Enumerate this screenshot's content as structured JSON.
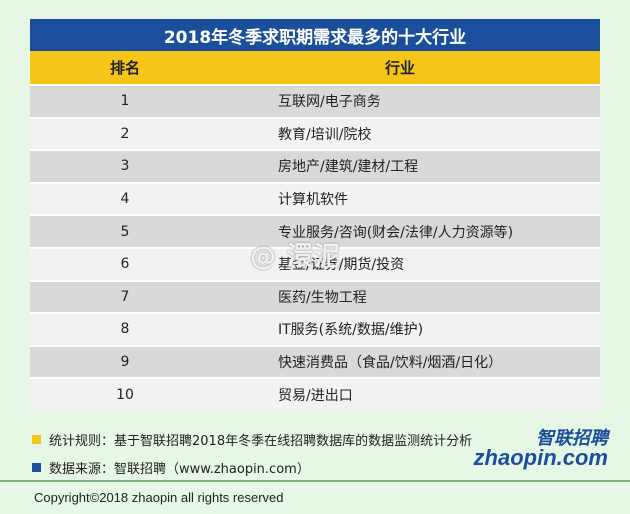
{
  "title": "2018年冬季求职期需求最多的十大行业",
  "header": {
    "rank": "排名",
    "industry": "行业"
  },
  "rows": [
    {
      "rank": "1",
      "industry": "互联网/电子商务"
    },
    {
      "rank": "2",
      "industry": "教育/培训/院校"
    },
    {
      "rank": "3",
      "industry": "房地产/建筑/建材/工程"
    },
    {
      "rank": "4",
      "industry": "计算机软件"
    },
    {
      "rank": "5",
      "industry": "专业服务/咨询(财会/法律/人力资源等)"
    },
    {
      "rank": "6",
      "industry": "基金/证券/期货/投资"
    },
    {
      "rank": "7",
      "industry": "医药/生物工程"
    },
    {
      "rank": "8",
      "industry": "IT服务(系统/数据/维护)"
    },
    {
      "rank": "9",
      "industry": "快速消费品（食品/饮料/烟酒/日化）"
    },
    {
      "rank": "10",
      "industry": "贸易/进出口"
    }
  ],
  "watermark": "@ 澴泥",
  "notes": {
    "rule": "统计规则：基于智联招聘2018年冬季在线招聘数据库的数据监测统计分析",
    "source": "数据来源：智联招聘（www.zhaopin.com）"
  },
  "logo": {
    "cn": "智联招聘",
    "en": "zhaopin.com"
  },
  "footer": "Copyright©2018 zhaopin all rights reserved",
  "colors": {
    "title_bg": "#1b4f9c",
    "header_bg": "#f5c518",
    "page_bg": "#e7f7e6"
  }
}
